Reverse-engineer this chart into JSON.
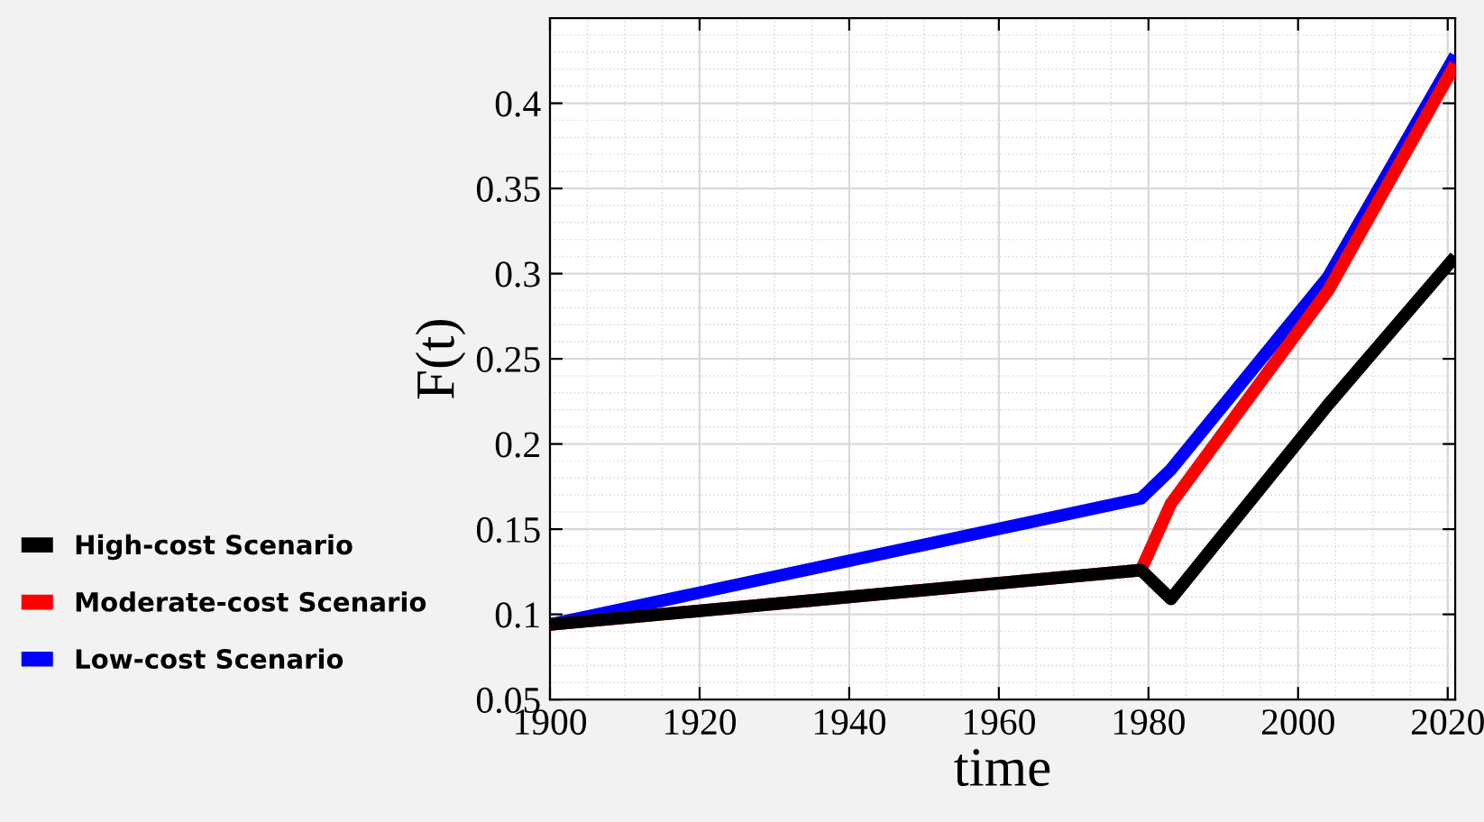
{
  "chart_data": {
    "type": "line",
    "xlabel": "time",
    "ylabel": "F(t)",
    "xlim": [
      1900,
      2021
    ],
    "xticks": [
      1900,
      1920,
      1940,
      1960,
      1980,
      2000,
      2020
    ],
    "ylim": [
      0.05,
      0.45
    ],
    "yticks": [
      0.05,
      0.1,
      0.15,
      0.2,
      0.25,
      0.3,
      0.35,
      0.4
    ],
    "grid": true,
    "legend": "left",
    "line_style": "solid",
    "marker": "none",
    "series": [
      {
        "name": "High-cost Scenario",
        "color": "#000000",
        "x": [
          1900,
          1979,
          1983,
          2004,
          2021
        ],
        "values": [
          0.094,
          0.126,
          0.109,
          0.223,
          0.31
        ]
      },
      {
        "name": "Moderate-cost Scenario",
        "color": "#ff0000",
        "x": [
          1900,
          1979,
          1983,
          2004,
          2021
        ],
        "values": [
          0.094,
          0.126,
          0.165,
          0.29,
          0.423
        ]
      },
      {
        "name": "Low-cost Scenario",
        "color": "#0000ff",
        "x": [
          1900,
          1979,
          1983,
          2004,
          2021
        ],
        "values": [
          0.094,
          0.168,
          0.185,
          0.298,
          0.428
        ]
      }
    ]
  }
}
